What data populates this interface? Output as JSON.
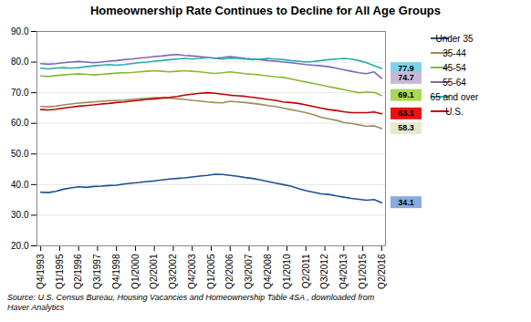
{
  "chart_data": {
    "type": "line",
    "title": "Homeownership Rate Continues to Decline for All Age Groups",
    "caption": "Source: U.S. Census Bureau, Housing Vacancies and Homeownership Table 4SA , downloaded from\nHaver Analytics",
    "x": [
      0,
      1,
      2,
      3,
      4,
      5,
      6,
      7,
      8,
      9,
      10,
      11,
      12,
      13,
      14,
      15,
      16,
      17,
      18,
      19,
      20,
      21,
      22,
      23,
      24,
      25,
      26,
      27,
      28,
      29,
      30,
      31,
      32,
      33,
      34,
      35,
      36,
      37,
      38,
      39,
      40,
      41,
      42,
      43,
      44,
      45
    ],
    "xlim": [
      -0.5,
      45.5
    ],
    "xticks": [
      {
        "value": 0,
        "label": "Q4/1993"
      },
      {
        "value": 2.5,
        "label": "Q1/1995"
      },
      {
        "value": 5,
        "label": "Q2/1996"
      },
      {
        "value": 7.5,
        "label": "Q3/1997"
      },
      {
        "value": 10,
        "label": "Q4/1998"
      },
      {
        "value": 12.5,
        "label": "Q1/2000"
      },
      {
        "value": 15,
        "label": "Q2/2001"
      },
      {
        "value": 17.5,
        "label": "Q3/2002"
      },
      {
        "value": 20,
        "label": "Q4/2003"
      },
      {
        "value": 22.5,
        "label": "Q1/2005"
      },
      {
        "value": 25,
        "label": "Q2/2006"
      },
      {
        "value": 27.5,
        "label": "Q3/2007"
      },
      {
        "value": 30,
        "label": "Q4/2008"
      },
      {
        "value": 32.5,
        "label": "Q1/2010"
      },
      {
        "value": 35,
        "label": "Q2/2011"
      },
      {
        "value": 37.5,
        "label": "Q3/2012"
      },
      {
        "value": 40,
        "label": "Q4/2013"
      },
      {
        "value": 42.5,
        "label": "Q1/2015"
      },
      {
        "value": 45,
        "label": "Q2/2016"
      }
    ],
    "ylim": [
      20.0,
      90.0
    ],
    "yticks": [
      {
        "value": 20.0,
        "label": "20.0"
      },
      {
        "value": 30.0,
        "label": "30.0"
      },
      {
        "value": 40.0,
        "label": "40.0"
      },
      {
        "value": 50.0,
        "label": "50.0"
      },
      {
        "value": 60.0,
        "label": "60.0"
      },
      {
        "value": 70.0,
        "label": "70.0"
      },
      {
        "value": 80.0,
        "label": "80.0"
      },
      {
        "value": 90.0,
        "label": "90.0"
      }
    ],
    "grid": "y",
    "legend": "right",
    "series": [
      {
        "name": "Under 35",
        "color": "#1f4e97",
        "values": [
          37.5,
          37.4,
          37.8,
          38.5,
          38.9,
          39.3,
          39.1,
          39.4,
          39.5,
          39.7,
          39.8,
          40.2,
          40.5,
          40.7,
          41.0,
          41.2,
          41.5,
          41.8,
          42.0,
          42.2,
          42.5,
          42.8,
          43.0,
          43.4,
          43.3,
          43.0,
          42.7,
          42.3,
          42.0,
          41.5,
          41.0,
          40.5,
          40.0,
          39.5,
          38.7,
          38.0,
          37.5,
          37.0,
          36.8,
          36.3,
          35.9,
          35.5,
          35.2,
          34.9,
          35.1,
          34.1
        ]
      },
      {
        "name": "35-44",
        "color": "#9a8c5a",
        "values": [
          65.5,
          65.4,
          65.6,
          66.0,
          66.3,
          66.6,
          66.8,
          67.0,
          67.2,
          67.4,
          67.5,
          67.6,
          67.8,
          68.0,
          68.2,
          68.4,
          68.3,
          68.2,
          68.0,
          67.8,
          67.5,
          67.3,
          67.0,
          66.8,
          66.7,
          67.2,
          67.0,
          66.8,
          66.5,
          66.2,
          65.8,
          65.5,
          65.0,
          64.5,
          64.0,
          63.5,
          62.8,
          62.0,
          61.5,
          61.0,
          60.3,
          60.0,
          59.5,
          59.0,
          59.2,
          58.3
        ]
      },
      {
        "name": "45-54",
        "color": "#8ab832",
        "values": [
          75.5,
          75.3,
          75.6,
          75.8,
          76.0,
          76.2,
          76.0,
          75.8,
          76.0,
          76.2,
          76.4,
          76.5,
          76.6,
          76.8,
          77.0,
          77.2,
          77.0,
          76.8,
          77.0,
          77.2,
          77.0,
          76.8,
          76.5,
          76.3,
          76.5,
          76.8,
          76.5,
          76.2,
          76.0,
          75.8,
          75.5,
          75.2,
          75.0,
          74.5,
          74.0,
          73.5,
          73.0,
          72.5,
          72.0,
          71.5,
          71.0,
          70.5,
          70.0,
          70.2,
          70.1,
          69.1
        ]
      },
      {
        "name": "55-64",
        "color": "#7b68b0",
        "values": [
          79.5,
          79.3,
          79.5,
          79.8,
          80.0,
          80.2,
          80.0,
          79.8,
          80.0,
          80.3,
          80.5,
          80.8,
          81.0,
          81.3,
          81.5,
          81.8,
          82.0,
          82.3,
          82.5,
          82.2,
          82.0,
          81.8,
          81.5,
          81.3,
          81.5,
          81.8,
          81.5,
          81.2,
          81.0,
          80.8,
          80.5,
          80.3,
          80.0,
          79.8,
          79.5,
          79.2,
          79.0,
          78.8,
          78.5,
          78.0,
          77.5,
          77.0,
          76.5,
          76.2,
          76.8,
          74.7
        ]
      },
      {
        "name": "65 and over",
        "color": "#2aacac",
        "values": [
          78.0,
          77.8,
          78.0,
          78.2,
          78.0,
          78.2,
          78.5,
          78.8,
          79.0,
          79.2,
          79.0,
          79.2,
          79.5,
          79.8,
          80.0,
          80.3,
          80.5,
          80.8,
          81.0,
          81.2,
          81.0,
          81.2,
          81.5,
          81.2,
          81.0,
          81.3,
          81.2,
          81.0,
          80.8,
          81.0,
          81.2,
          81.0,
          80.8,
          80.5,
          80.3,
          80.0,
          80.2,
          80.5,
          80.8,
          81.0,
          81.2,
          81.0,
          80.5,
          79.8,
          78.8,
          77.9
        ]
      },
      {
        "name": "U.S.",
        "color": "#c00000",
        "values": [
          64.5,
          64.4,
          64.6,
          65.0,
          65.3,
          65.6,
          65.8,
          66.0,
          66.3,
          66.5,
          66.8,
          67.0,
          67.3,
          67.5,
          67.8,
          68.0,
          68.3,
          68.5,
          68.8,
          69.2,
          69.5,
          69.8,
          70.0,
          69.8,
          69.5,
          69.2,
          69.0,
          68.8,
          68.5,
          68.2,
          67.8,
          67.5,
          67.0,
          66.8,
          66.5,
          66.0,
          65.5,
          65.0,
          64.5,
          64.2,
          63.8,
          63.5,
          63.5,
          63.5,
          63.7,
          63.1
        ]
      }
    ],
    "annotations": [
      {
        "label": "77.9",
        "y": 77.9,
        "color": "#7dd4e8"
      },
      {
        "label": "74.7",
        "y": 74.7,
        "color": "#c8b8d8"
      },
      {
        "label": "69.1",
        "y": 69.1,
        "color": "#a8d858"
      },
      {
        "label": "63.1",
        "y": 63.1,
        "color": "#ee1111"
      },
      {
        "label": "58.3",
        "y": 58.3,
        "color": "#e8e8cc"
      },
      {
        "label": "34.1",
        "y": 34.1,
        "color": "#88aadd"
      }
    ]
  }
}
